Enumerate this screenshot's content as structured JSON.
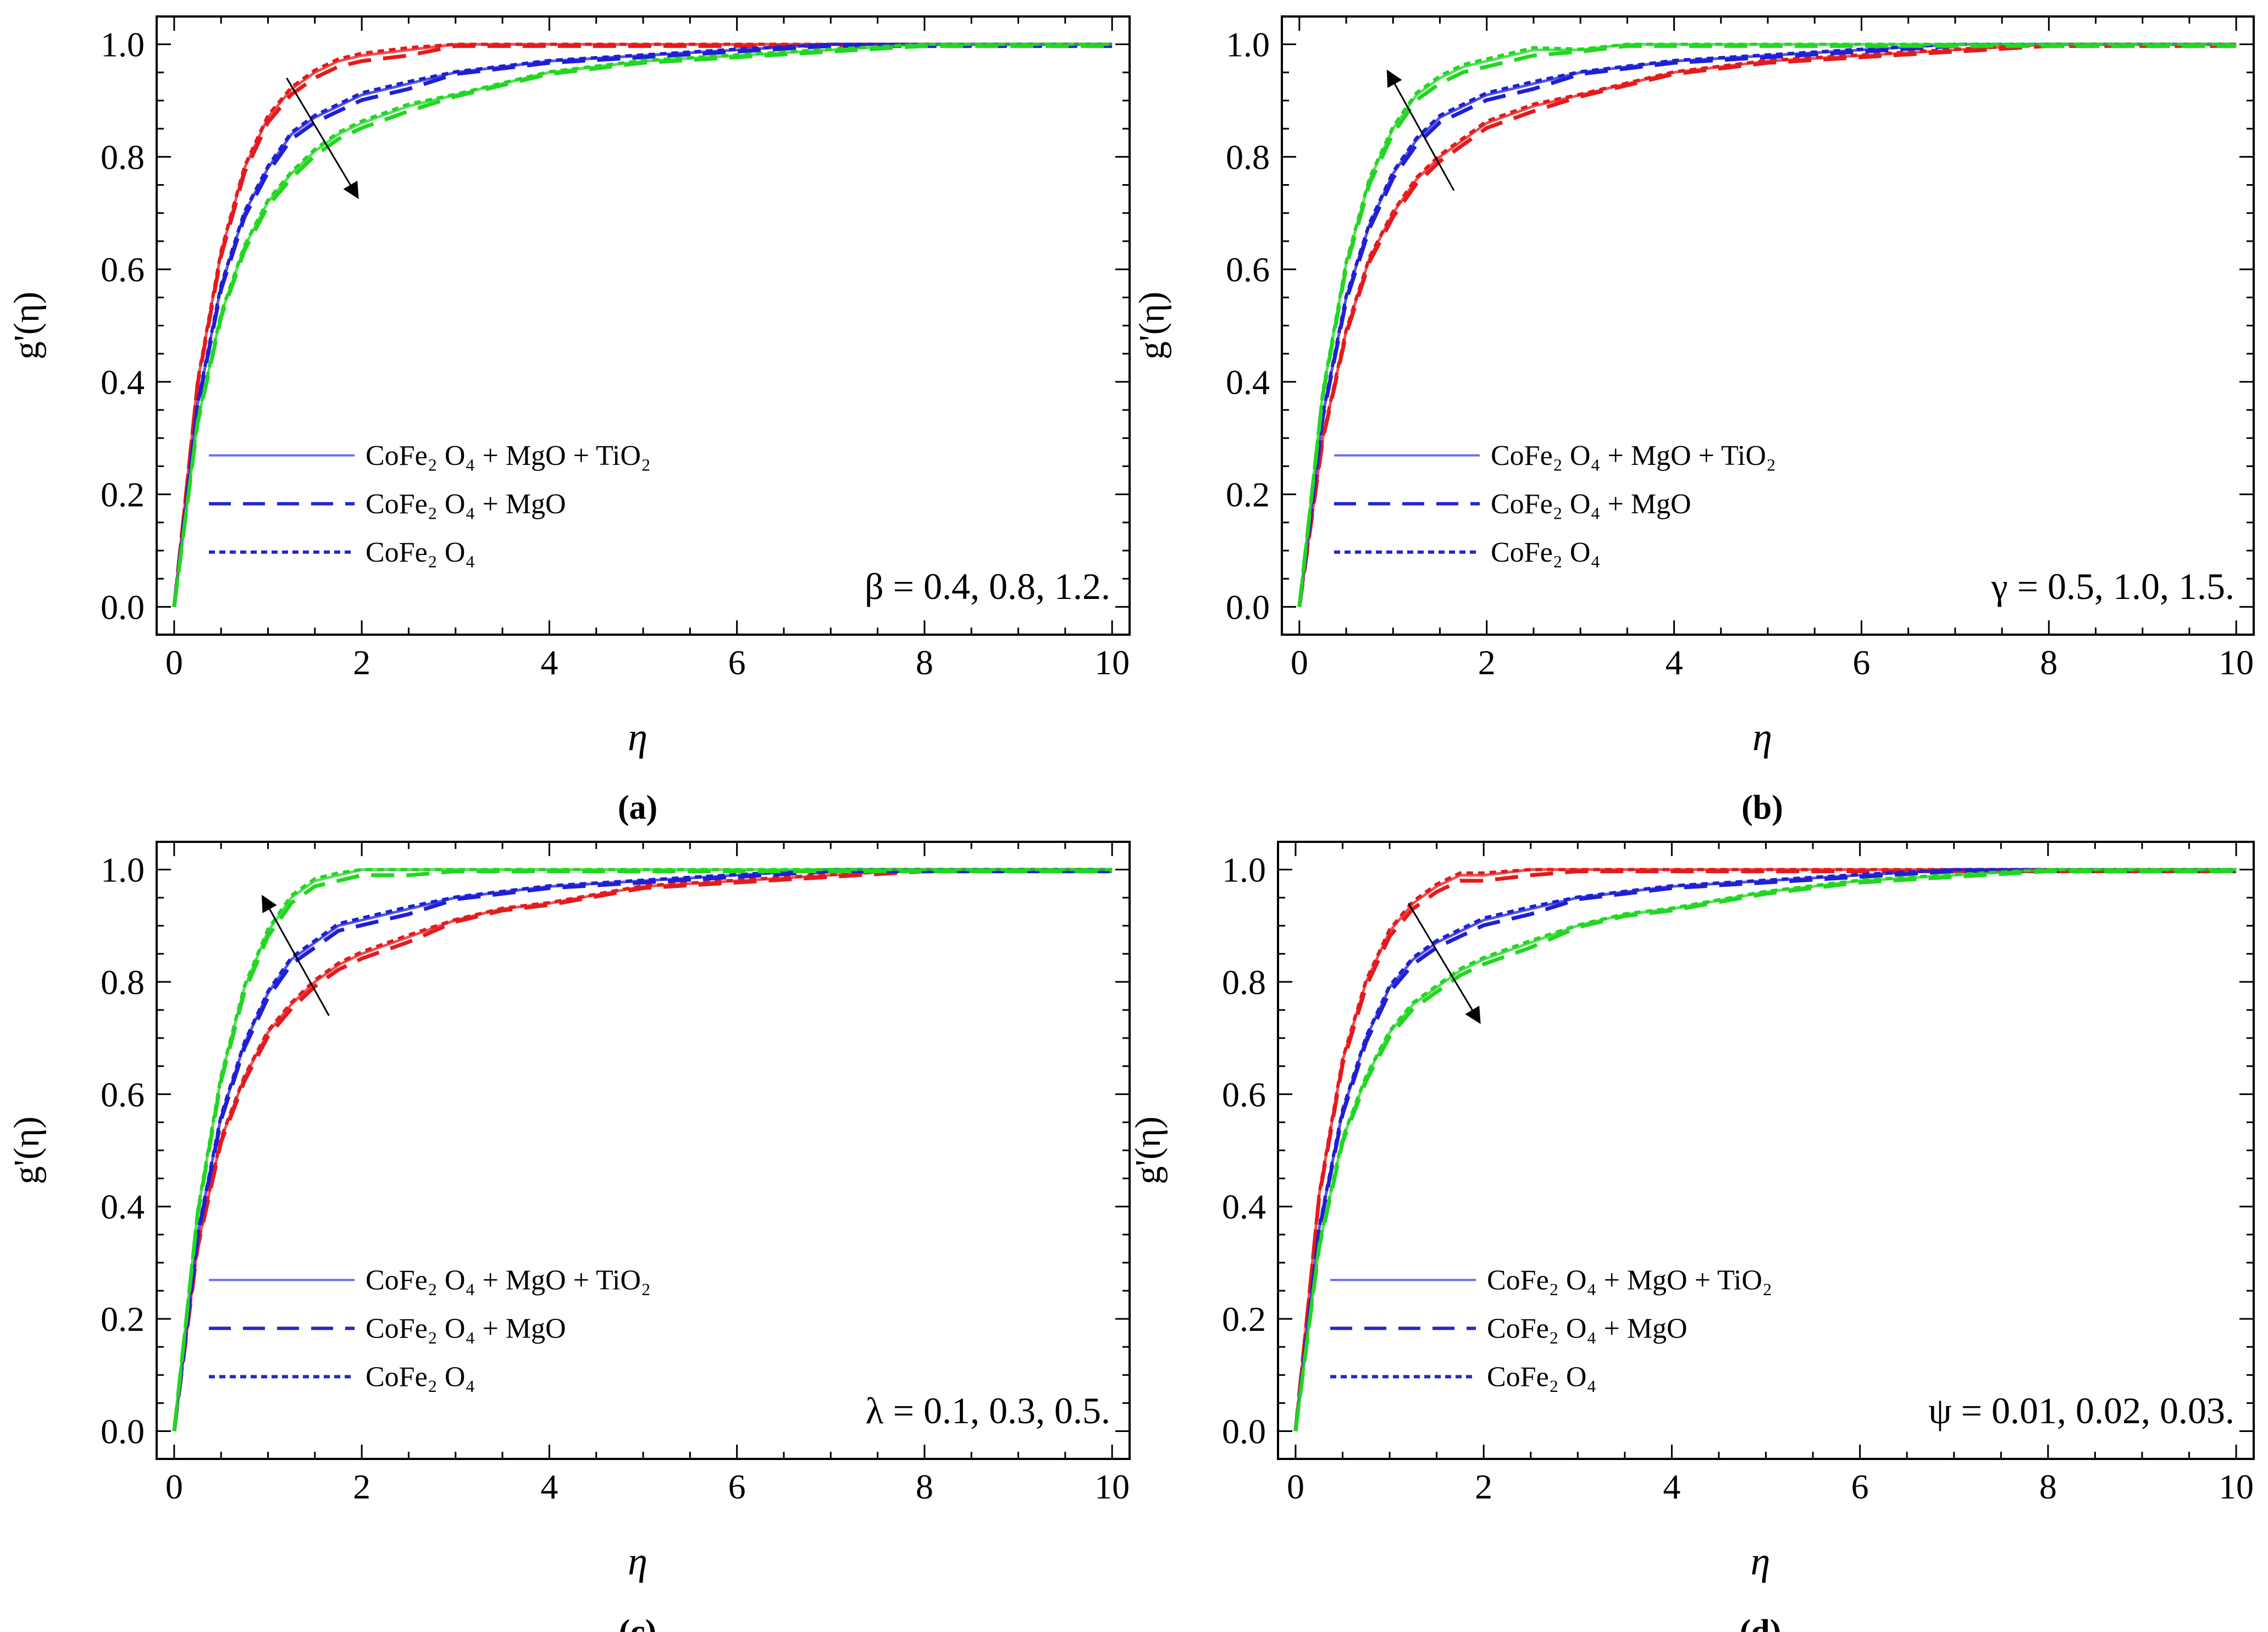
{
  "chart_data": [
    {
      "type": "line",
      "panel": "a",
      "caption": "(a)",
      "xlabel": "η",
      "ylabel": "g'(η)",
      "xlim": [
        0,
        10
      ],
      "ylim": [
        0,
        1.0
      ],
      "xticks": [
        "0",
        "2",
        "4",
        "6",
        "8",
        "10"
      ],
      "yticks": [
        "0.0",
        "0.2",
        "0.4",
        "0.6",
        "0.8",
        "1.0"
      ],
      "parameter_label": "β = 0.4, 0.8, 1.2.",
      "arrow": "down-right",
      "legend": [
        {
          "text": "CoFe₂ O₄ + MgO + TiO₂",
          "style": "solid"
        },
        {
          "text": "CoFe₂ O₄ + MgO",
          "style": "dashed"
        },
        {
          "text": "CoFe₂ O₄",
          "style": "dotted"
        }
      ],
      "x": [
        0,
        0.25,
        0.5,
        0.75,
        1,
        1.25,
        1.5,
        1.75,
        2,
        2.5,
        3,
        3.5,
        4,
        5,
        6,
        7,
        8,
        9,
        10
      ],
      "series": [
        {
          "name": "β = 0.4",
          "color": "#e41a1c",
          "values": [
            0.0,
            0.4,
            0.63,
            0.78,
            0.87,
            0.92,
            0.95,
            0.97,
            0.98,
            0.99,
            1.0,
            1.0,
            1.0,
            1.0,
            1.0,
            1.0,
            1.0,
            1.0,
            1.0
          ]
        },
        {
          "name": "β = 0.8",
          "color": "#1f1fd6",
          "values": [
            0.0,
            0.36,
            0.57,
            0.7,
            0.78,
            0.84,
            0.87,
            0.89,
            0.91,
            0.93,
            0.95,
            0.96,
            0.97,
            0.98,
            0.99,
            1.0,
            1.0,
            1.0,
            1.0
          ]
        },
        {
          "name": "β = 1.2",
          "color": "#22d622",
          "values": [
            0.0,
            0.33,
            0.52,
            0.64,
            0.72,
            0.77,
            0.81,
            0.84,
            0.86,
            0.89,
            0.91,
            0.93,
            0.95,
            0.97,
            0.98,
            0.99,
            1.0,
            1.0,
            1.0
          ]
        }
      ]
    },
    {
      "type": "line",
      "panel": "b",
      "caption": "(b)",
      "xlabel": "η",
      "ylabel": "g'(η)",
      "xlim": [
        0,
        10
      ],
      "ylim": [
        0,
        1.0
      ],
      "xticks": [
        "0",
        "2",
        "4",
        "6",
        "8",
        "10"
      ],
      "yticks": [
        "0.0",
        "0.2",
        "0.4",
        "0.6",
        "0.8",
        "1.0"
      ],
      "parameter_label": "γ = 0.5, 1.0, 1.5.",
      "arrow": "up-left",
      "legend": [
        {
          "text": "CoFe₂ O₄ + MgO + TiO₂",
          "style": "solid"
        },
        {
          "text": "CoFe₂ O₄ + MgO",
          "style": "dashed"
        },
        {
          "text": "CoFe₂ O₄",
          "style": "dotted"
        }
      ],
      "x": [
        0,
        0.25,
        0.5,
        0.75,
        1,
        1.25,
        1.5,
        1.75,
        2,
        2.5,
        3,
        3.5,
        4,
        5,
        6,
        7,
        8,
        9,
        10
      ],
      "series": [
        {
          "name": "γ = 0.5",
          "color": "#e41a1c",
          "values": [
            0.0,
            0.3,
            0.49,
            0.62,
            0.7,
            0.76,
            0.8,
            0.83,
            0.86,
            0.89,
            0.91,
            0.93,
            0.95,
            0.97,
            0.98,
            0.99,
            1.0,
            1.0,
            1.0
          ]
        },
        {
          "name": "γ = 1.0",
          "color": "#1f1fd6",
          "values": [
            0.0,
            0.34,
            0.55,
            0.68,
            0.77,
            0.83,
            0.87,
            0.89,
            0.91,
            0.93,
            0.95,
            0.96,
            0.97,
            0.98,
            0.99,
            1.0,
            1.0,
            1.0,
            1.0
          ]
        },
        {
          "name": "γ = 1.5",
          "color": "#22d622",
          "values": [
            0.0,
            0.38,
            0.61,
            0.76,
            0.85,
            0.91,
            0.94,
            0.96,
            0.97,
            0.99,
            0.99,
            1.0,
            1.0,
            1.0,
            1.0,
            1.0,
            1.0,
            1.0,
            1.0
          ]
        }
      ]
    },
    {
      "type": "line",
      "panel": "c",
      "caption": "(c)",
      "xlabel": "η",
      "ylabel": "g'(η)",
      "xlim": [
        0,
        10
      ],
      "ylim": [
        0,
        1.0
      ],
      "xticks": [
        "0",
        "2",
        "4",
        "6",
        "8",
        "10"
      ],
      "yticks": [
        "0.0",
        "0.2",
        "0.4",
        "0.6",
        "0.8",
        "1.0"
      ],
      "parameter_label": "λ = 0.1, 0.3, 0.5.",
      "arrow": "up-left",
      "legend": [
        {
          "text": "CoFe₂ O₄ + MgO + TiO₂",
          "style": "solid"
        },
        {
          "text": "CoFe₂ O₄ + MgO",
          "style": "dashed"
        },
        {
          "text": "CoFe₂ O₄",
          "style": "dotted"
        }
      ],
      "x": [
        0,
        0.25,
        0.5,
        0.75,
        1,
        1.25,
        1.5,
        1.75,
        2,
        2.5,
        3,
        3.5,
        4,
        5,
        6,
        7,
        8,
        9,
        10
      ],
      "series": [
        {
          "name": "λ = 0.1",
          "color": "#e41a1c",
          "values": [
            0.0,
            0.33,
            0.52,
            0.63,
            0.71,
            0.76,
            0.8,
            0.83,
            0.85,
            0.88,
            0.91,
            0.93,
            0.94,
            0.97,
            0.98,
            0.99,
            1.0,
            1.0,
            1.0
          ]
        },
        {
          "name": "λ = 0.3",
          "color": "#1f1fd6",
          "values": [
            0.0,
            0.35,
            0.56,
            0.69,
            0.78,
            0.84,
            0.87,
            0.9,
            0.91,
            0.93,
            0.95,
            0.96,
            0.97,
            0.98,
            0.99,
            1.0,
            1.0,
            1.0,
            1.0
          ]
        },
        {
          "name": "λ = 0.5",
          "color": "#22d622",
          "values": [
            0.0,
            0.39,
            0.63,
            0.79,
            0.89,
            0.95,
            0.98,
            0.99,
            1.0,
            1.0,
            1.0,
            1.0,
            1.0,
            1.0,
            1.0,
            1.0,
            1.0,
            1.0,
            1.0
          ]
        }
      ]
    },
    {
      "type": "line",
      "panel": "d",
      "caption": "(d)",
      "xlabel": "η",
      "ylabel": "g'(η)",
      "xlim": [
        0,
        10
      ],
      "ylim": [
        0,
        1.0
      ],
      "xticks": [
        "0",
        "2",
        "4",
        "6",
        "8",
        "10"
      ],
      "yticks": [
        "0.0",
        "0.2",
        "0.4",
        "0.6",
        "0.8",
        "1.0"
      ],
      "parameter_label": "ψ = 0.01, 0.02, 0.03.",
      "arrow": "down-right",
      "legend": [
        {
          "text": "CoFe₂ O₄ + MgO + TiO₂",
          "style": "solid"
        },
        {
          "text": "CoFe₂ O₄ + MgO",
          "style": "dashed"
        },
        {
          "text": "CoFe₂ O₄",
          "style": "dotted"
        }
      ],
      "x": [
        0,
        0.25,
        0.5,
        0.75,
        1,
        1.25,
        1.5,
        1.75,
        2,
        2.5,
        3,
        3.5,
        4,
        5,
        6,
        7,
        8,
        9,
        10
      ],
      "series": [
        {
          "name": "ψ = 0.01",
          "color": "#e41a1c",
          "values": [
            0.0,
            0.42,
            0.66,
            0.8,
            0.89,
            0.94,
            0.97,
            0.99,
            0.99,
            1.0,
            1.0,
            1.0,
            1.0,
            1.0,
            1.0,
            1.0,
            1.0,
            1.0,
            1.0
          ]
        },
        {
          "name": "ψ = 0.02",
          "color": "#1f1fd6",
          "values": [
            0.0,
            0.36,
            0.57,
            0.7,
            0.79,
            0.84,
            0.87,
            0.89,
            0.91,
            0.93,
            0.95,
            0.96,
            0.97,
            0.98,
            0.99,
            1.0,
            1.0,
            1.0,
            1.0
          ]
        },
        {
          "name": "ψ = 0.03",
          "color": "#22d622",
          "values": [
            0.0,
            0.33,
            0.52,
            0.63,
            0.71,
            0.76,
            0.79,
            0.82,
            0.84,
            0.87,
            0.9,
            0.92,
            0.93,
            0.96,
            0.98,
            0.99,
            1.0,
            1.0,
            1.0
          ]
        }
      ]
    }
  ]
}
